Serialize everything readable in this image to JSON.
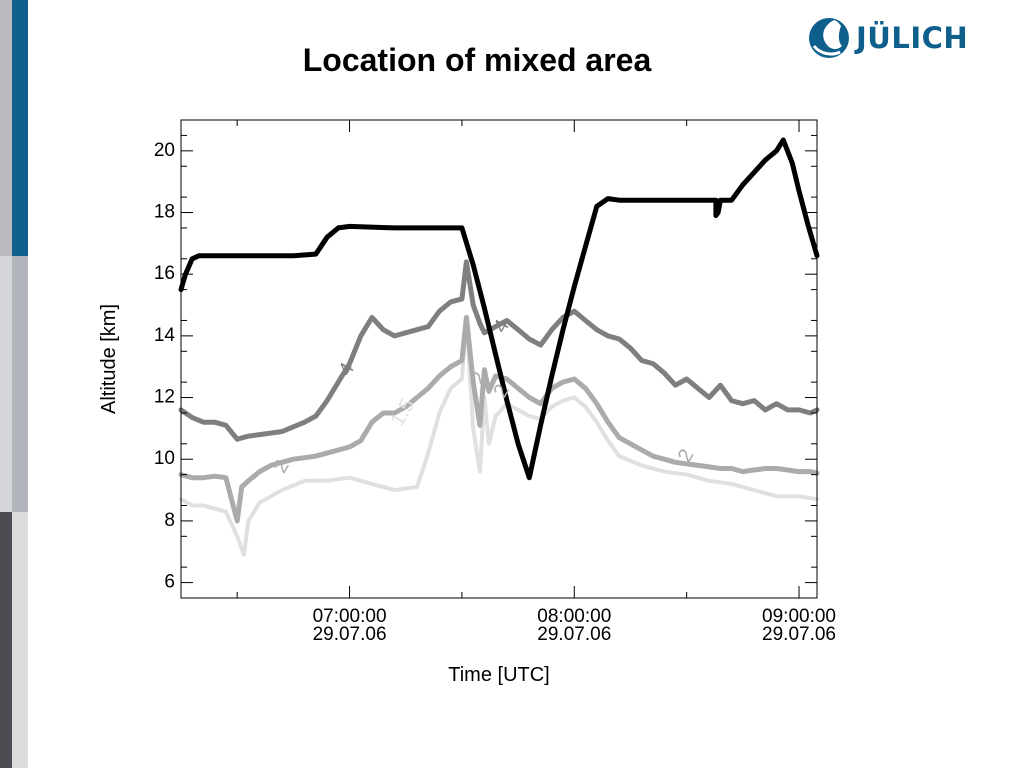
{
  "slide": {
    "title": "Location of mixed area",
    "logo_text": "JÜLICH",
    "logo_icon": "julich-logo-icon",
    "brand_color": "#0f5f8d"
  },
  "chart_data": {
    "type": "line",
    "title": "",
    "xlabel": "Time [UTC]",
    "ylabel": "Altitude [km]",
    "x_unit": "hours UTC",
    "xlim": [
      6.25,
      9.08
    ],
    "ylim": [
      5.5,
      21
    ],
    "grid": false,
    "x_ticks": [
      {
        "x": 7.0,
        "label": [
          "07:00:00",
          "29.07.06"
        ]
      },
      {
        "x": 8.0,
        "label": [
          "08:00:00",
          "29.07.06"
        ]
      },
      {
        "x": 9.0,
        "label": [
          "09:00:00",
          "29.07.06"
        ]
      }
    ],
    "y_ticks": [
      6,
      8,
      10,
      12,
      14,
      16,
      18,
      20
    ],
    "series": [
      {
        "color": "#000000",
        "x": [
          6.25,
          6.27,
          6.3,
          6.33,
          6.45,
          6.6,
          6.75,
          6.85,
          6.9,
          6.95,
          7.0,
          7.2,
          7.4,
          7.5,
          7.55,
          7.6,
          7.65,
          7.7,
          7.75,
          7.8,
          7.85,
          7.9,
          7.95,
          8.0,
          8.05,
          8.1,
          8.15,
          8.2,
          8.3,
          8.4,
          8.5,
          8.6,
          8.63,
          8.63,
          8.64,
          8.65,
          8.7,
          8.75,
          8.8,
          8.85,
          8.9,
          8.93,
          8.97,
          9.0,
          9.04,
          9.08
        ],
        "y": [
          15.5,
          16.0,
          16.5,
          16.6,
          16.6,
          16.6,
          16.6,
          16.65,
          17.2,
          17.5,
          17.55,
          17.5,
          17.5,
          17.5,
          16.3,
          14.9,
          13.4,
          11.9,
          10.5,
          9.4,
          11.1,
          12.7,
          14.2,
          15.6,
          16.9,
          18.2,
          18.45,
          18.4,
          18.4,
          18.4,
          18.4,
          18.4,
          18.4,
          17.9,
          18.0,
          18.4,
          18.4,
          18.9,
          19.3,
          19.7,
          20.0,
          20.35,
          19.6,
          18.7,
          17.6,
          16.6
        ]
      },
      {
        "color": "#7f7f7f",
        "x": [
          6.25,
          6.3,
          6.35,
          6.4,
          6.45,
          6.5,
          6.55,
          6.6,
          6.7,
          6.8,
          6.85,
          6.9,
          6.95,
          7.0,
          7.05,
          7.1,
          7.15,
          7.2,
          7.3,
          7.35,
          7.4,
          7.45,
          7.5,
          7.52,
          7.55,
          7.58,
          7.6,
          7.65,
          7.7,
          7.75,
          7.8,
          7.85,
          7.9,
          7.95,
          8.0,
          8.05,
          8.1,
          8.15,
          8.2,
          8.25,
          8.3,
          8.35,
          8.4,
          8.45,
          8.5,
          8.55,
          8.6,
          8.65,
          8.7,
          8.75,
          8.8,
          8.85,
          8.9,
          8.95,
          9.0,
          9.05,
          9.08
        ],
        "y": [
          11.6,
          11.35,
          11.2,
          11.2,
          11.1,
          10.65,
          10.75,
          10.8,
          10.9,
          11.2,
          11.4,
          11.9,
          12.5,
          13.1,
          14.0,
          14.6,
          14.2,
          14.0,
          14.2,
          14.3,
          14.8,
          15.1,
          15.2,
          16.4,
          15.0,
          14.4,
          14.1,
          14.3,
          14.5,
          14.2,
          13.9,
          13.7,
          14.2,
          14.6,
          14.8,
          14.5,
          14.2,
          14.0,
          13.9,
          13.6,
          13.2,
          13.1,
          12.8,
          12.4,
          12.6,
          12.3,
          12.0,
          12.4,
          11.9,
          11.8,
          11.9,
          11.6,
          11.8,
          11.6,
          11.6,
          11.5,
          11.6
        ]
      },
      {
        "color": "#ababab",
        "x": [
          6.25,
          6.3,
          6.35,
          6.4,
          6.45,
          6.5,
          6.52,
          6.55,
          6.6,
          6.65,
          6.7,
          6.75,
          6.8,
          6.85,
          6.9,
          6.95,
          7.0,
          7.05,
          7.1,
          7.15,
          7.2,
          7.25,
          7.3,
          7.35,
          7.4,
          7.45,
          7.5,
          7.52,
          7.55,
          7.58,
          7.6,
          7.62,
          7.65,
          7.7,
          7.75,
          7.8,
          7.85,
          7.9,
          7.95,
          8.0,
          8.05,
          8.1,
          8.15,
          8.2,
          8.25,
          8.3,
          8.35,
          8.4,
          8.45,
          8.5,
          8.55,
          8.6,
          8.65,
          8.7,
          8.75,
          8.8,
          8.85,
          8.9,
          8.95,
          9.0,
          9.05,
          9.08
        ],
        "y": [
          9.5,
          9.4,
          9.4,
          9.45,
          9.4,
          8.0,
          9.1,
          9.3,
          9.6,
          9.8,
          9.9,
          10.0,
          10.05,
          10.1,
          10.2,
          10.3,
          10.4,
          10.6,
          11.2,
          11.5,
          11.5,
          11.7,
          12.0,
          12.3,
          12.7,
          13.0,
          13.2,
          14.6,
          12.5,
          11.1,
          12.9,
          12.2,
          12.7,
          12.6,
          12.3,
          12.0,
          11.8,
          12.3,
          12.5,
          12.6,
          12.3,
          11.8,
          11.2,
          10.7,
          10.5,
          10.3,
          10.1,
          10.0,
          9.9,
          9.85,
          9.8,
          9.75,
          9.7,
          9.7,
          9.6,
          9.65,
          9.7,
          9.7,
          9.65,
          9.6,
          9.6,
          9.55
        ]
      },
      {
        "color": "#e0e0e0",
        "x": [
          6.25,
          6.3,
          6.35,
          6.4,
          6.45,
          6.5,
          6.53,
          6.55,
          6.6,
          6.65,
          6.7,
          6.8,
          6.9,
          7.0,
          7.1,
          7.2,
          7.3,
          7.35,
          7.4,
          7.45,
          7.5,
          7.52,
          7.55,
          7.58,
          7.6,
          7.62,
          7.65,
          7.7,
          7.75,
          7.8,
          7.85,
          7.9,
          7.95,
          8.0,
          8.05,
          8.1,
          8.15,
          8.2,
          8.3,
          8.4,
          8.5,
          8.6,
          8.7,
          8.8,
          8.9,
          9.0,
          9.08
        ],
        "y": [
          8.7,
          8.5,
          8.5,
          8.4,
          8.3,
          7.5,
          6.9,
          8.0,
          8.6,
          8.8,
          9.0,
          9.3,
          9.3,
          9.4,
          9.2,
          9.0,
          9.1,
          10.2,
          11.5,
          12.3,
          12.6,
          14.5,
          11.0,
          9.6,
          12.0,
          10.5,
          11.4,
          11.8,
          11.6,
          11.4,
          11.3,
          11.7,
          11.9,
          12.0,
          11.7,
          11.2,
          10.6,
          10.1,
          9.8,
          9.6,
          9.5,
          9.3,
          9.2,
          9.0,
          8.8,
          8.8,
          8.7
        ]
      }
    ],
    "annotations": [
      {
        "text": "4",
        "x": 6.99,
        "y": 12.9,
        "color": "#7f7f7f"
      },
      {
        "text": "4",
        "x": 7.68,
        "y": 14.3,
        "color": "#7f7f7f"
      },
      {
        "text": "2",
        "x": 6.7,
        "y": 9.75,
        "color": "#ababab"
      },
      {
        "text": "2",
        "x": 7.58,
        "y": 12.6,
        "color": "#ababab"
      },
      {
        "text": "2",
        "x": 7.68,
        "y": 12.2,
        "color": "#ababab"
      },
      {
        "text": "2",
        "x": 8.5,
        "y": 10.1,
        "color": "#ababab"
      },
      {
        "text": "1.5",
        "x": 7.24,
        "y": 11.5,
        "color": "#e0e0e0"
      }
    ]
  }
}
